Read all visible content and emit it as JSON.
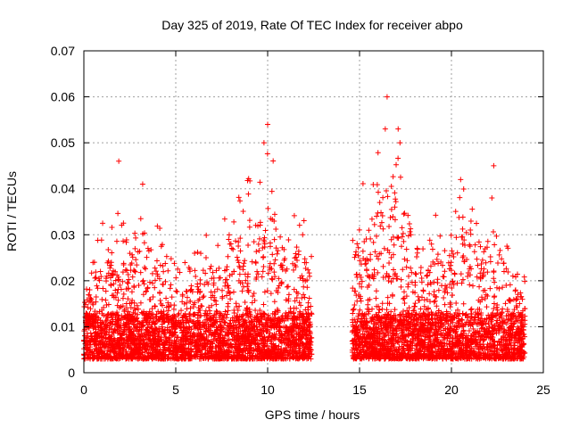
{
  "chart_data": {
    "type": "scatter",
    "title": "Day 325 of 2019, Rate Of TEC Index for receiver abpo",
    "xlabel": "GPS time / hours",
    "ylabel": "ROTI / TECUs",
    "xlim": [
      0,
      25
    ],
    "ylim": [
      0,
      0.07
    ],
    "x_ticks": [
      0,
      5,
      10,
      15,
      20,
      25
    ],
    "y_ticks": [
      0,
      0.01,
      0.02,
      0.03,
      0.04,
      0.05,
      0.06,
      0.07
    ],
    "x_tick_labels": [
      "0",
      "5",
      "10",
      "15",
      "20",
      "25"
    ],
    "y_tick_labels": [
      "0",
      "0.01",
      "0.02",
      "0.03",
      "0.04",
      "0.05",
      "0.06",
      "0.07"
    ],
    "grid": true,
    "marker": "+",
    "color": "#ff0000",
    "data_gap_hours": [
      12.5,
      14.6
    ],
    "notable_points": [
      {
        "x": 1.9,
        "y": 0.046
      },
      {
        "x": 3.2,
        "y": 0.041
      },
      {
        "x": 9.8,
        "y": 0.05
      },
      {
        "x": 10.0,
        "y": 0.054
      },
      {
        "x": 16.5,
        "y": 0.06
      },
      {
        "x": 16.4,
        "y": 0.053
      },
      {
        "x": 17.1,
        "y": 0.053
      },
      {
        "x": 17.2,
        "y": 0.05
      },
      {
        "x": 22.3,
        "y": 0.045
      },
      {
        "x": 20.5,
        "y": 0.042
      }
    ],
    "envelope": [
      [
        0.0,
        0.02
      ],
      [
        0.5,
        0.026
      ],
      [
        1.0,
        0.034
      ],
      [
        1.5,
        0.032
      ],
      [
        2.0,
        0.038
      ],
      [
        2.5,
        0.03
      ],
      [
        3.0,
        0.036
      ],
      [
        3.5,
        0.03
      ],
      [
        4.0,
        0.034
      ],
      [
        4.5,
        0.027
      ],
      [
        5.0,
        0.026
      ],
      [
        5.5,
        0.024
      ],
      [
        6.0,
        0.028
      ],
      [
        6.5,
        0.032
      ],
      [
        7.0,
        0.031
      ],
      [
        7.5,
        0.033
      ],
      [
        8.0,
        0.036
      ],
      [
        8.5,
        0.04
      ],
      [
        9.0,
        0.043
      ],
      [
        9.5,
        0.046
      ],
      [
        10.0,
        0.05
      ],
      [
        10.5,
        0.044
      ],
      [
        11.0,
        0.034
      ],
      [
        11.5,
        0.035
      ],
      [
        12.0,
        0.034
      ],
      [
        12.4,
        0.026
      ],
      [
        14.6,
        0.032
      ],
      [
        15.0,
        0.04
      ],
      [
        15.5,
        0.043
      ],
      [
        16.0,
        0.048
      ],
      [
        16.5,
        0.052
      ],
      [
        17.0,
        0.05
      ],
      [
        17.5,
        0.038
      ],
      [
        18.0,
        0.03
      ],
      [
        18.5,
        0.028
      ],
      [
        19.0,
        0.034
      ],
      [
        19.5,
        0.035
      ],
      [
        20.0,
        0.038
      ],
      [
        20.5,
        0.041
      ],
      [
        21.0,
        0.039
      ],
      [
        21.5,
        0.036
      ],
      [
        22.0,
        0.04
      ],
      [
        22.5,
        0.036
      ],
      [
        23.0,
        0.031
      ],
      [
        23.5,
        0.024
      ],
      [
        24.0,
        0.022
      ]
    ]
  }
}
